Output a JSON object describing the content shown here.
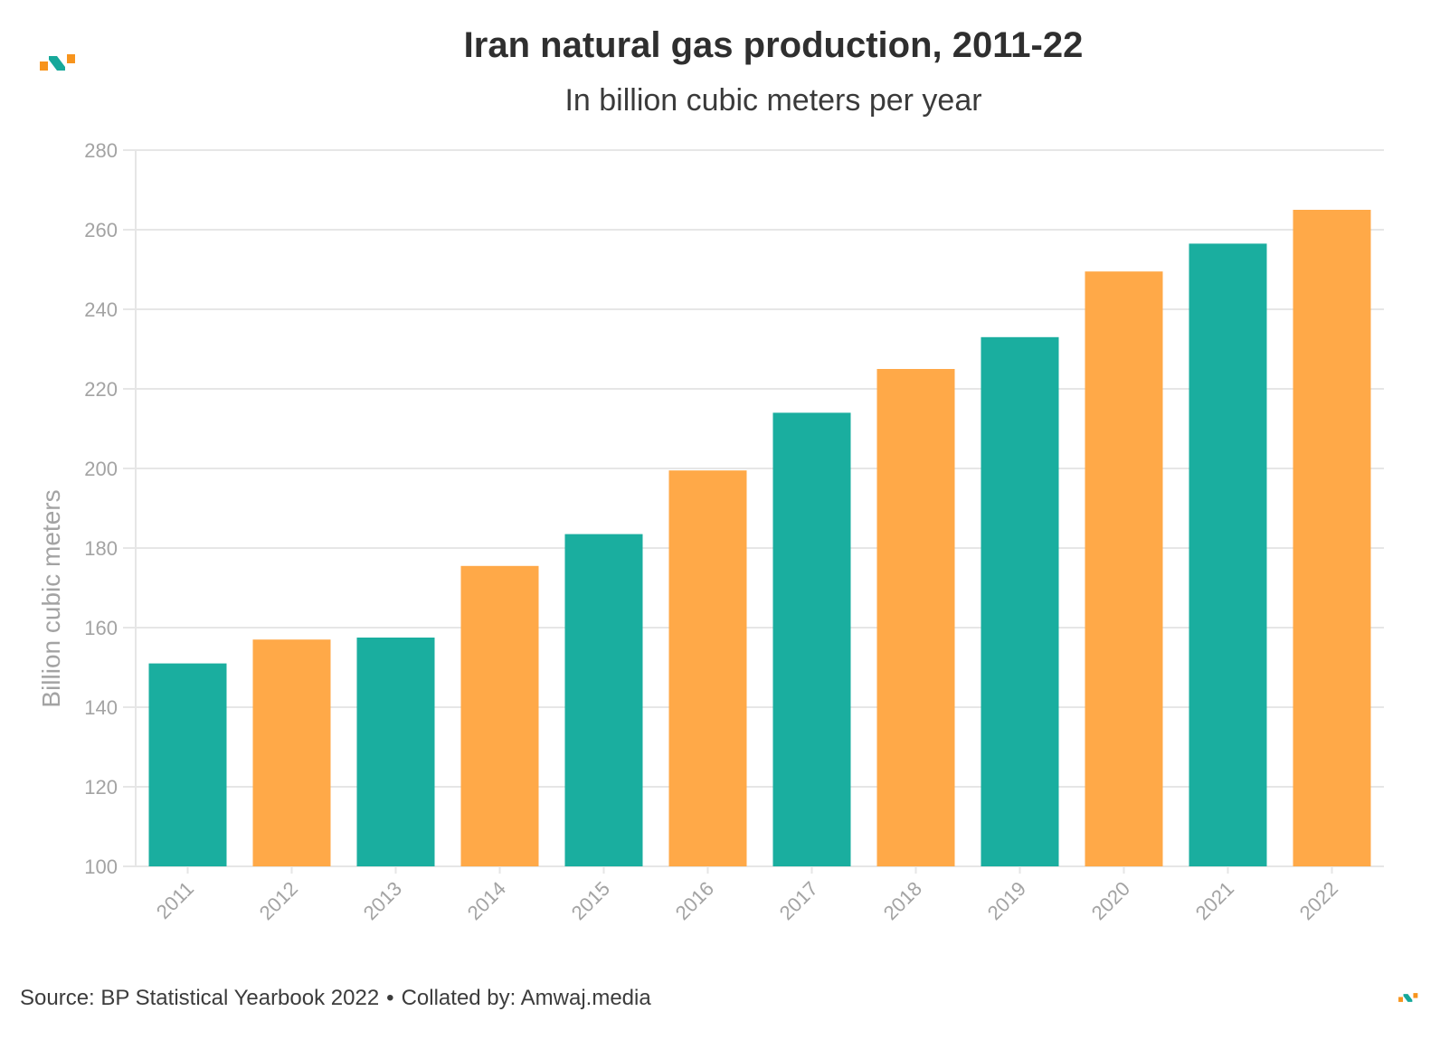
{
  "brand": {
    "logo_icon": "amwaj-logo-icon",
    "colors": {
      "orange": "#F7941D",
      "teal": "#16A89A",
      "dark": "#2F2F2F"
    }
  },
  "header": {
    "title": "Iran natural gas production, 2011-22",
    "subtitle": "In billion cubic meters per year"
  },
  "footer": {
    "source": "Source: BP Statistical Yearbook 2022",
    "separator": "•",
    "collated": "Collated by: Amwaj.media"
  },
  "chart_data": {
    "type": "bar",
    "title": "Iran natural gas production, 2011-22",
    "subtitle": "In billion cubic meters per year",
    "xlabel": "",
    "ylabel": "Billion cubic meters",
    "ylim": [
      100,
      280
    ],
    "yticks": [
      100,
      120,
      140,
      160,
      180,
      200,
      220,
      240,
      260,
      280
    ],
    "grid": true,
    "categories": [
      "2011",
      "2012",
      "2013",
      "2014",
      "2015",
      "2016",
      "2017",
      "2018",
      "2019",
      "2020",
      "2021",
      "2022"
    ],
    "values": [
      151,
      157,
      157.5,
      175.5,
      183.5,
      199.5,
      214,
      225,
      233,
      249.5,
      256.5,
      265
    ],
    "bar_colors": [
      "#1AAE9F",
      "#FFA948",
      "#1AAE9F",
      "#FFA948",
      "#1AAE9F",
      "#FFA948",
      "#1AAE9F",
      "#FFA948",
      "#1AAE9F",
      "#FFA948",
      "#1AAE9F",
      "#FFA948"
    ],
    "gridline_color": "#E6E6E6",
    "tick_label_color": "#A3A3A3"
  }
}
